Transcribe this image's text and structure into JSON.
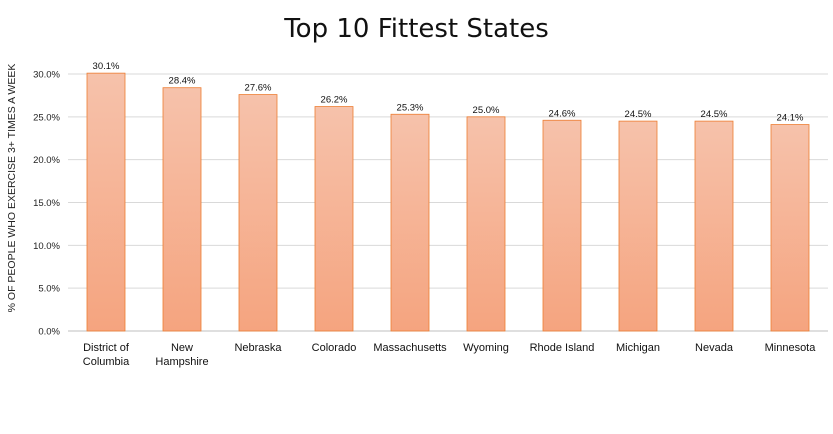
{
  "chart_data": {
    "type": "bar",
    "title": "Top 10 Fittest States",
    "ylabel": "% OF PEOPLE WHO EXERCISE 3+ TIMES A WEEK",
    "xlabel": "",
    "categories": [
      "District of Columbia",
      "New Hampshire",
      "Nebraska",
      "Colorado",
      "Massachusetts",
      "Wyoming",
      "Rhode Island",
      "Michigan",
      "Nevada",
      "Minnesota"
    ],
    "values": [
      30.1,
      28.4,
      27.6,
      26.2,
      25.3,
      25.0,
      24.6,
      24.5,
      24.5,
      24.1
    ],
    "data_labels": [
      "30.1%",
      "28.4%",
      "27.6%",
      "26.2%",
      "25.3%",
      "25.0%",
      "24.6%",
      "24.5%",
      "24.5%",
      "24.1%"
    ],
    "ylim": [
      0,
      30
    ],
    "yticks": [
      "0.0%",
      "5.0%",
      "10.0%",
      "15.0%",
      "20.0%",
      "25.0%",
      "30.0%"
    ],
    "grid": true,
    "bar_color_top": "#f6c2ab",
    "bar_color_bottom": "#f5a47f",
    "bar_border": "#ed7d31"
  }
}
